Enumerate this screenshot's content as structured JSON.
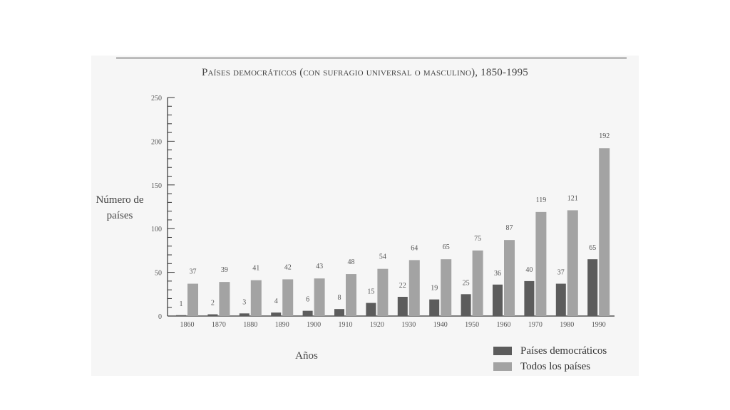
{
  "colors": {
    "democratic": "#5c5c5c",
    "all": "#a3a3a3",
    "axis": "#333333",
    "text": "#555555"
  },
  "chart_data": {
    "type": "bar",
    "title": "Países democráticos (con sufragio universal o masculino), 1850-1995",
    "xlabel": "Años",
    "ylabel": "Número de países",
    "ylim": [
      0,
      250
    ],
    "yticks": [
      0,
      50,
      100,
      150,
      200,
      250
    ],
    "grid": false,
    "legend_position": "bottom-right",
    "categories": [
      "1860",
      "1870",
      "1880",
      "1890",
      "1900",
      "1910",
      "1920",
      "1930",
      "1940",
      "1950",
      "1960",
      "1970",
      "1980",
      "1990"
    ],
    "series": [
      {
        "name": "Países democráticos",
        "values": [
          1,
          2,
          3,
          4,
          6,
          8,
          15,
          22,
          19,
          25,
          36,
          40,
          37,
          65
        ]
      },
      {
        "name": "Todos los países",
        "values": [
          37,
          39,
          41,
          42,
          43,
          48,
          54,
          64,
          65,
          75,
          87,
          119,
          121,
          192
        ]
      }
    ]
  }
}
